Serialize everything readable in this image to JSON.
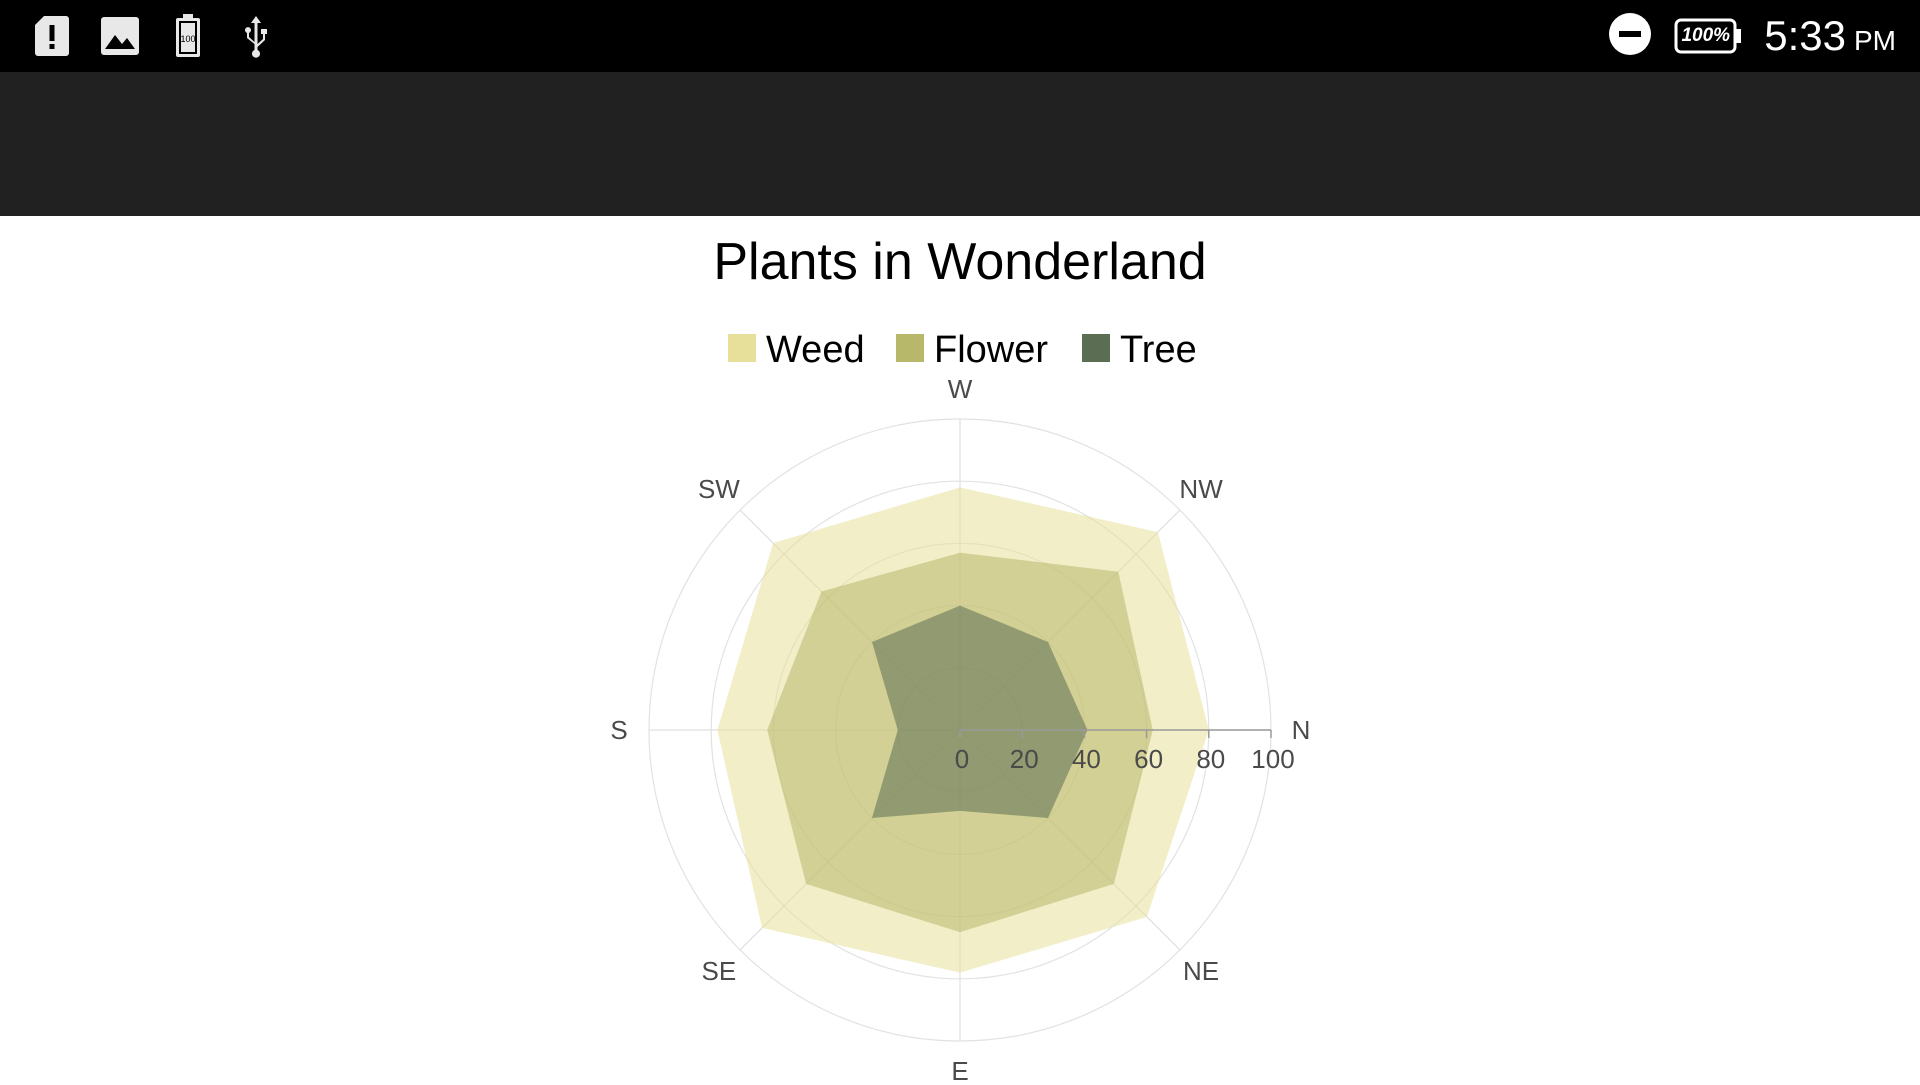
{
  "status_bar": {
    "icons": [
      "sd-card-alert-icon",
      "image-icon",
      "battery-100-icon",
      "usb-icon"
    ],
    "dnd_icon": "do-not-disturb-icon",
    "battery_label": "100%",
    "time": "5:33",
    "ampm": "PM"
  },
  "chart_data": {
    "type": "polar-area",
    "title": "Plants in Wonderland",
    "directions": [
      "N",
      "NE",
      "E",
      "SE",
      "S",
      "SW",
      "W",
      "NW"
    ],
    "radial_ticks": [
      "0",
      "20",
      "40",
      "60",
      "80",
      "100"
    ],
    "radial_max": 100,
    "legend_position": "top",
    "grid": true,
    "series": [
      {
        "name": "Weed",
        "color": "#e6e09a",
        "values": [
          80,
          85,
          78,
          90,
          78,
          85,
          78,
          90
        ]
      },
      {
        "name": "Flower",
        "color": "#b8b86a",
        "values": [
          62,
          70,
          65,
          70,
          62,
          63,
          57,
          72
        ]
      },
      {
        "name": "Tree",
        "color": "#5b6e53",
        "values": [
          41,
          40,
          26,
          40,
          20,
          40,
          40,
          40
        ]
      }
    ]
  }
}
